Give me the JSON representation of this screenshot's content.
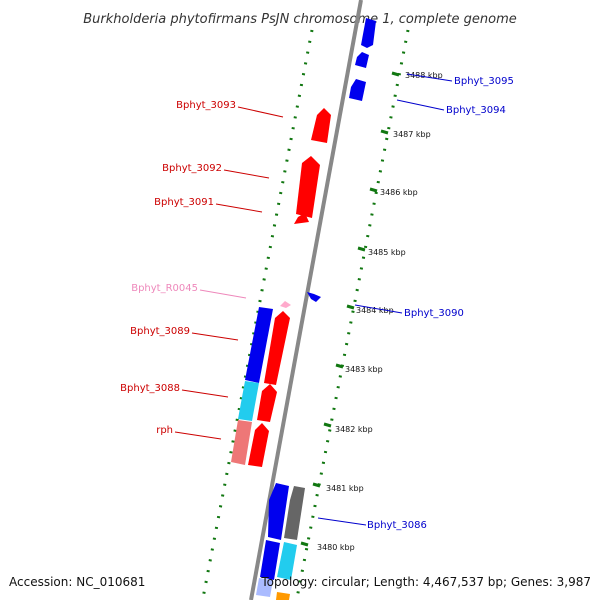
{
  "title": "Burkholderia phytofirmans PsJN chromosome 1, complete genome",
  "footer": {
    "accession": "Accession: NC_010681",
    "summary": "Topology: circular; Length: 4,467,537 bp; Genes: 3,987"
  },
  "scale_ticks": [
    "3488 kbp",
    "3487 kbp",
    "3486 kbp",
    "3485 kbp",
    "3484 kbp",
    "3483 kbp",
    "3482 kbp",
    "3481 kbp",
    "3480 kbp"
  ],
  "gene_labels": {
    "bphyt_3093": "Bphyt_3093",
    "bphyt_3092": "Bphyt_3092",
    "bphyt_3091": "Bphyt_3091",
    "bphyt_r0045": "Bphyt_R0045",
    "bphyt_3089": "Bphyt_3089",
    "bphyt_3088": "Bphyt_3088",
    "rph": "rph",
    "bphyt_3095": "Bphyt_3095",
    "bphyt_3094": "Bphyt_3094",
    "bphyt_3090": "Bphyt_3090",
    "bphyt_3086": "Bphyt_3086"
  },
  "colors": {
    "forward_gene": "#ff0000",
    "reverse_gene": "#0000ee",
    "cyan_gene": "#22ccee",
    "pink_gene": "#ee7777",
    "rna_gene": "#ffaacc",
    "grey_gene": "#666666",
    "backbone": "#888888",
    "dots": "#117711",
    "label_red": "#cc0000",
    "label_blue": "#0000cc",
    "label_pink": "#ee88bb"
  }
}
